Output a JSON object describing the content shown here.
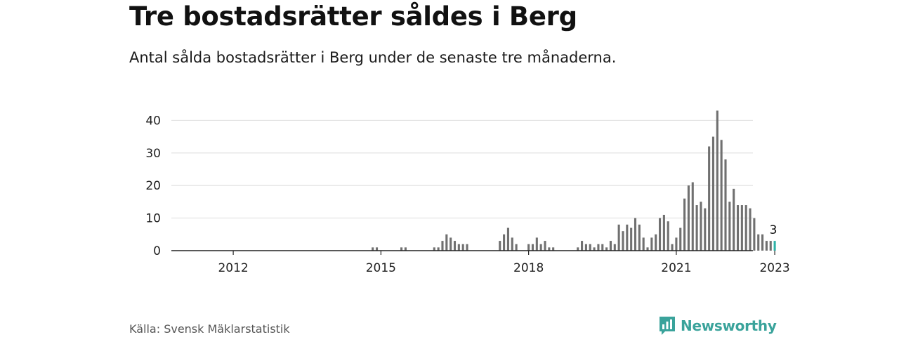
{
  "header": {
    "title": "Tre bostadsrätter såldes i Berg",
    "subtitle": "Antal sålda bostadsrätter i Berg under de senaste tre månaderna."
  },
  "footer": {
    "source": "Källa: Svensk Mäklarstatistik",
    "brand": "Newsworthy",
    "brand_icon": "newsworthy-logo-icon"
  },
  "colors": {
    "bar": "#707070",
    "highlight": "#2fb3a8",
    "grid": "#dddddd",
    "axis": "#222222",
    "brand": "#3aa39b"
  },
  "chart_data": {
    "type": "bar",
    "title": "",
    "xlabel": "",
    "ylabel": "",
    "x_start": "2011-01",
    "x_end": "2023-01",
    "xticks": [
      {
        "date": "2012-01",
        "label": "2012"
      },
      {
        "date": "2015-01",
        "label": "2015"
      },
      {
        "date": "2018-01",
        "label": "2018"
      },
      {
        "date": "2021-01",
        "label": "2021"
      },
      {
        "date": "2023-01",
        "label": "2023"
      }
    ],
    "ylim": [
      0,
      43
    ],
    "yticks": [
      0,
      10,
      20,
      30,
      40
    ],
    "grid": true,
    "highlight": {
      "date": "2023-01",
      "value": 3,
      "label": "3"
    },
    "series": [
      {
        "values": [
          {
            "date": "2014-11",
            "value": 1
          },
          {
            "date": "2014-12",
            "value": 1
          },
          {
            "date": "2015-06",
            "value": 1
          },
          {
            "date": "2015-07",
            "value": 1
          },
          {
            "date": "2016-02",
            "value": 1
          },
          {
            "date": "2016-03",
            "value": 1
          },
          {
            "date": "2016-04",
            "value": 3
          },
          {
            "date": "2016-05",
            "value": 5
          },
          {
            "date": "2016-06",
            "value": 4
          },
          {
            "date": "2016-07",
            "value": 3
          },
          {
            "date": "2016-08",
            "value": 2
          },
          {
            "date": "2016-09",
            "value": 2
          },
          {
            "date": "2016-10",
            "value": 2
          },
          {
            "date": "2017-06",
            "value": 3
          },
          {
            "date": "2017-07",
            "value": 5
          },
          {
            "date": "2017-08",
            "value": 7
          },
          {
            "date": "2017-09",
            "value": 4
          },
          {
            "date": "2017-10",
            "value": 2
          },
          {
            "date": "2018-01",
            "value": 2
          },
          {
            "date": "2018-02",
            "value": 2
          },
          {
            "date": "2018-03",
            "value": 4
          },
          {
            "date": "2018-04",
            "value": 2
          },
          {
            "date": "2018-05",
            "value": 3
          },
          {
            "date": "2018-06",
            "value": 1
          },
          {
            "date": "2018-07",
            "value": 1
          },
          {
            "date": "2019-01",
            "value": 1
          },
          {
            "date": "2019-02",
            "value": 3
          },
          {
            "date": "2019-03",
            "value": 2
          },
          {
            "date": "2019-04",
            "value": 2
          },
          {
            "date": "2019-05",
            "value": 1
          },
          {
            "date": "2019-06",
            "value": 2
          },
          {
            "date": "2019-07",
            "value": 2
          },
          {
            "date": "2019-08",
            "value": 1
          },
          {
            "date": "2019-09",
            "value": 3
          },
          {
            "date": "2019-10",
            "value": 2
          },
          {
            "date": "2019-11",
            "value": 8
          },
          {
            "date": "2019-12",
            "value": 6
          },
          {
            "date": "2020-01",
            "value": 8
          },
          {
            "date": "2020-02",
            "value": 7
          },
          {
            "date": "2020-03",
            "value": 10
          },
          {
            "date": "2020-04",
            "value": 8
          },
          {
            "date": "2020-05",
            "value": 4
          },
          {
            "date": "2020-06",
            "value": 1
          },
          {
            "date": "2020-07",
            "value": 4
          },
          {
            "date": "2020-08",
            "value": 5
          },
          {
            "date": "2020-09",
            "value": 10
          },
          {
            "date": "2020-10",
            "value": 11
          },
          {
            "date": "2020-11",
            "value": 9
          },
          {
            "date": "2020-12",
            "value": 2
          },
          {
            "date": "2021-01",
            "value": 4
          },
          {
            "date": "2021-02",
            "value": 7
          },
          {
            "date": "2021-03",
            "value": 16
          },
          {
            "date": "2021-04",
            "value": 20
          },
          {
            "date": "2021-05",
            "value": 21
          },
          {
            "date": "2021-06",
            "value": 14
          },
          {
            "date": "2021-07",
            "value": 15
          },
          {
            "date": "2021-08",
            "value": 13
          },
          {
            "date": "2021-09",
            "value": 32
          },
          {
            "date": "2021-10",
            "value": 35
          },
          {
            "date": "2021-11",
            "value": 43
          },
          {
            "date": "2021-12",
            "value": 34
          },
          {
            "date": "2022-01",
            "value": 28
          },
          {
            "date": "2022-02",
            "value": 15
          },
          {
            "date": "2022-03",
            "value": 19
          },
          {
            "date": "2022-04",
            "value": 14
          },
          {
            "date": "2022-05",
            "value": 14
          },
          {
            "date": "2022-06",
            "value": 14
          },
          {
            "date": "2022-07",
            "value": 13
          },
          {
            "date": "2022-08",
            "value": 10
          },
          {
            "date": "2022-09",
            "value": 5
          },
          {
            "date": "2022-10",
            "value": 5
          },
          {
            "date": "2022-11",
            "value": 3
          },
          {
            "date": "2022-12",
            "value": 3
          },
          {
            "date": "2023-01",
            "value": 3
          }
        ]
      }
    ]
  }
}
